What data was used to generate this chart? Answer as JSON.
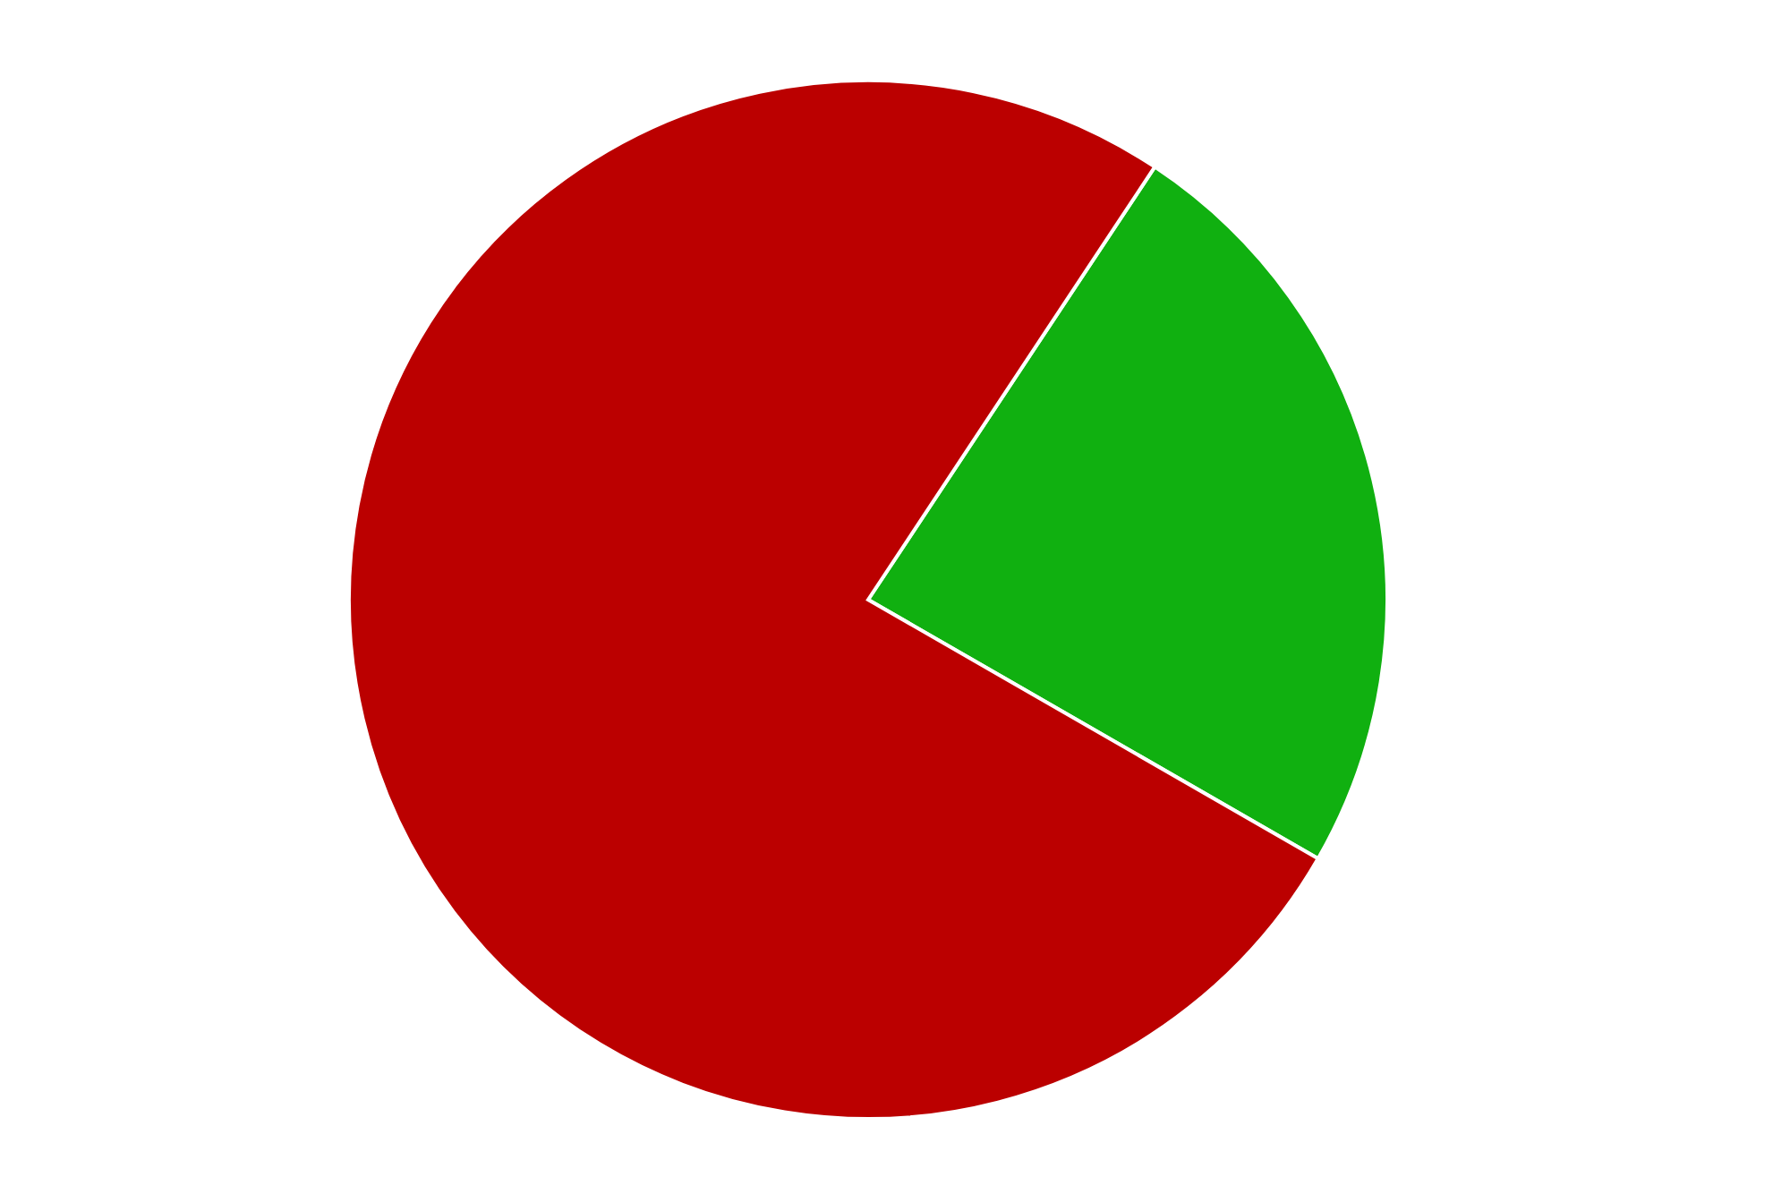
{
  "chart_data": {
    "type": "pie",
    "categories": [
      null,
      null
    ],
    "values": [
      24,
      76
    ],
    "colors": [
      "#10b010",
      "#bb0000"
    ]
  }
}
